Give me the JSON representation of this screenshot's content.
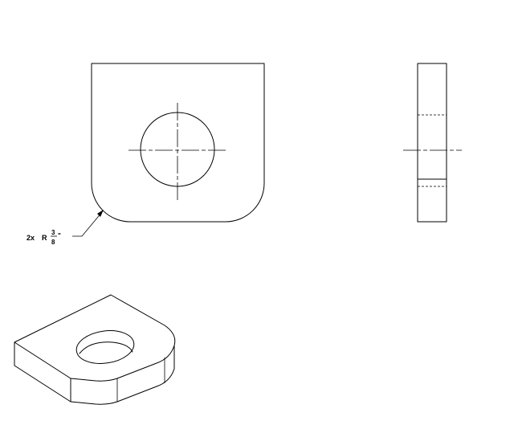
{
  "annotation": {
    "quantity": "2x",
    "radius_symbol": "R",
    "numerator": "3",
    "denominator": "8",
    "unit": "\""
  }
}
